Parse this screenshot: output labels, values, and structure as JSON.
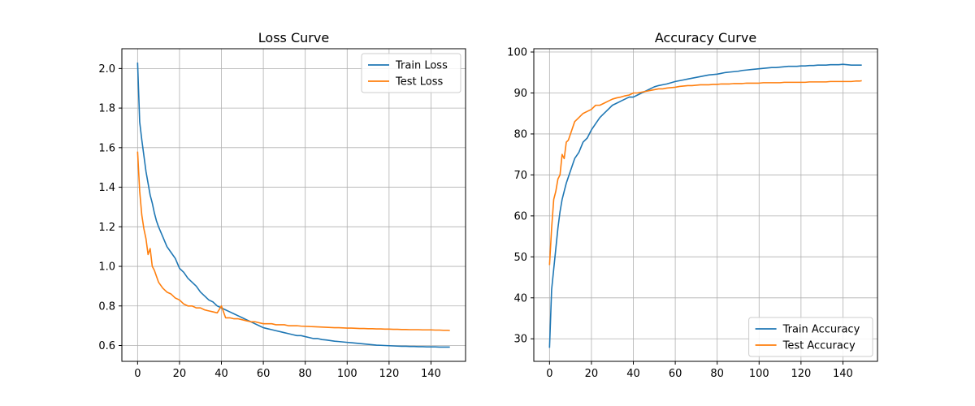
{
  "chart_data": [
    {
      "type": "line",
      "title": "Loss Curve",
      "xlabel": "",
      "ylabel": "",
      "xlim": [
        -7.5,
        156.5
      ],
      "ylim": [
        0.52,
        2.1
      ],
      "xticks": [
        0,
        20,
        40,
        60,
        80,
        100,
        120,
        140
      ],
      "xtick_labels": [
        "0",
        "20",
        "40",
        "60",
        "80",
        "100",
        "120",
        "140"
      ],
      "yticks": [
        0.6,
        0.8,
        1.0,
        1.2,
        1.4,
        1.6,
        1.8,
        2.0
      ],
      "ytick_labels": [
        "0.6",
        "0.8",
        "1.0",
        "1.2",
        "1.4",
        "1.6",
        "1.8",
        "2.0"
      ],
      "grid": true,
      "legend_position": "top-right",
      "series": [
        {
          "name": "Train Loss",
          "color": "#1f77b4",
          "x": [
            0,
            1,
            2,
            3,
            4,
            5,
            6,
            7,
            8,
            9,
            10,
            12,
            14,
            16,
            18,
            20,
            22,
            24,
            26,
            28,
            30,
            32,
            34,
            36,
            38,
            40,
            42,
            44,
            46,
            48,
            50,
            52,
            54,
            56,
            58,
            60,
            62,
            64,
            66,
            68,
            70,
            72,
            74,
            76,
            78,
            80,
            82,
            84,
            86,
            88,
            90,
            92,
            94,
            96,
            98,
            100,
            102,
            104,
            106,
            108,
            110,
            112,
            114,
            116,
            118,
            120,
            122,
            124,
            126,
            128,
            130,
            132,
            134,
            136,
            138,
            140,
            142,
            144,
            146,
            148,
            149
          ],
          "y": [
            2.03,
            1.73,
            1.64,
            1.56,
            1.48,
            1.42,
            1.36,
            1.32,
            1.27,
            1.23,
            1.2,
            1.15,
            1.1,
            1.07,
            1.04,
            0.99,
            0.97,
            0.94,
            0.92,
            0.9,
            0.87,
            0.85,
            0.83,
            0.82,
            0.8,
            0.79,
            0.78,
            0.77,
            0.76,
            0.75,
            0.74,
            0.73,
            0.72,
            0.71,
            0.7,
            0.69,
            0.685,
            0.68,
            0.675,
            0.67,
            0.665,
            0.66,
            0.655,
            0.65,
            0.65,
            0.645,
            0.64,
            0.635,
            0.635,
            0.63,
            0.628,
            0.625,
            0.622,
            0.62,
            0.618,
            0.616,
            0.614,
            0.612,
            0.61,
            0.608,
            0.606,
            0.604,
            0.602,
            0.601,
            0.6,
            0.599,
            0.598,
            0.597,
            0.596,
            0.596,
            0.595,
            0.595,
            0.594,
            0.594,
            0.593,
            0.593,
            0.593,
            0.592,
            0.592,
            0.592,
            0.592
          ]
        },
        {
          "name": "Test Loss",
          "color": "#ff7f0e",
          "x": [
            0,
            1,
            2,
            3,
            4,
            5,
            6,
            7,
            8,
            9,
            10,
            12,
            14,
            16,
            18,
            20,
            22,
            24,
            26,
            28,
            30,
            32,
            34,
            36,
            38,
            40,
            42,
            44,
            46,
            48,
            50,
            52,
            54,
            56,
            58,
            60,
            62,
            64,
            66,
            68,
            70,
            72,
            74,
            76,
            78,
            80,
            82,
            84,
            86,
            88,
            90,
            92,
            94,
            96,
            98,
            100,
            102,
            104,
            106,
            108,
            110,
            112,
            114,
            116,
            118,
            120,
            122,
            124,
            126,
            128,
            130,
            132,
            134,
            136,
            138,
            140,
            142,
            144,
            146,
            148,
            149
          ],
          "y": [
            1.58,
            1.38,
            1.26,
            1.19,
            1.14,
            1.06,
            1.09,
            1.0,
            0.98,
            0.95,
            0.92,
            0.89,
            0.87,
            0.86,
            0.84,
            0.83,
            0.81,
            0.8,
            0.8,
            0.79,
            0.79,
            0.78,
            0.775,
            0.77,
            0.765,
            0.8,
            0.74,
            0.74,
            0.735,
            0.735,
            0.73,
            0.725,
            0.72,
            0.72,
            0.715,
            0.71,
            0.71,
            0.71,
            0.705,
            0.705,
            0.705,
            0.7,
            0.7,
            0.7,
            0.698,
            0.697,
            0.696,
            0.695,
            0.694,
            0.693,
            0.692,
            0.691,
            0.69,
            0.69,
            0.689,
            0.688,
            0.688,
            0.687,
            0.686,
            0.686,
            0.685,
            0.685,
            0.684,
            0.684,
            0.683,
            0.683,
            0.682,
            0.682,
            0.681,
            0.681,
            0.68,
            0.68,
            0.68,
            0.679,
            0.679,
            0.679,
            0.678,
            0.678,
            0.677,
            0.677,
            0.676
          ]
        }
      ]
    },
    {
      "type": "line",
      "title": "Accuracy Curve",
      "xlabel": "",
      "ylabel": "",
      "xlim": [
        -7.5,
        156.5
      ],
      "ylim": [
        24.5,
        100.8
      ],
      "xticks": [
        0,
        20,
        40,
        60,
        80,
        100,
        120,
        140
      ],
      "xtick_labels": [
        "0",
        "20",
        "40",
        "60",
        "80",
        "100",
        "120",
        "140"
      ],
      "yticks": [
        30,
        40,
        50,
        60,
        70,
        80,
        90,
        100
      ],
      "ytick_labels": [
        "30",
        "40",
        "50",
        "60",
        "70",
        "80",
        "90",
        "100"
      ],
      "grid": true,
      "legend_position": "bottom-right",
      "series": [
        {
          "name": "Train Accuracy",
          "color": "#1f77b4",
          "x": [
            0,
            1,
            2,
            3,
            4,
            5,
            6,
            7,
            8,
            9,
            10,
            12,
            14,
            16,
            18,
            20,
            22,
            24,
            26,
            28,
            30,
            32,
            34,
            36,
            38,
            40,
            42,
            44,
            46,
            48,
            50,
            52,
            54,
            56,
            58,
            60,
            62,
            64,
            66,
            68,
            70,
            72,
            74,
            76,
            78,
            80,
            82,
            84,
            86,
            88,
            90,
            92,
            94,
            96,
            98,
            100,
            102,
            104,
            106,
            108,
            110,
            112,
            114,
            116,
            118,
            120,
            122,
            124,
            126,
            128,
            130,
            132,
            134,
            136,
            138,
            140,
            142,
            144,
            146,
            148,
            149
          ],
          "y": [
            27.8,
            42,
            47,
            52,
            57,
            61,
            64,
            66,
            68,
            69.5,
            71,
            74,
            75.5,
            78,
            79,
            81,
            82.5,
            84,
            85,
            86,
            87,
            87.5,
            88,
            88.5,
            89,
            89,
            89.5,
            90,
            90.5,
            91,
            91.5,
            91.8,
            92,
            92.2,
            92.5,
            92.8,
            93,
            93.2,
            93.4,
            93.6,
            93.8,
            94,
            94.2,
            94.4,
            94.5,
            94.6,
            94.8,
            95,
            95.1,
            95.2,
            95.3,
            95.5,
            95.6,
            95.7,
            95.8,
            95.9,
            96,
            96.1,
            96.2,
            96.2,
            96.3,
            96.4,
            96.5,
            96.5,
            96.5,
            96.6,
            96.6,
            96.7,
            96.7,
            96.8,
            96.8,
            96.8,
            96.9,
            96.9,
            96.9,
            97,
            96.9,
            96.8,
            96.8,
            96.8,
            96.8
          ]
        },
        {
          "name": "Test Accuracy",
          "color": "#ff7f0e",
          "x": [
            0,
            1,
            2,
            3,
            4,
            5,
            6,
            7,
            8,
            9,
            10,
            12,
            14,
            16,
            18,
            20,
            22,
            24,
            26,
            28,
            30,
            32,
            34,
            36,
            38,
            40,
            42,
            44,
            46,
            48,
            50,
            52,
            54,
            56,
            58,
            60,
            62,
            64,
            66,
            68,
            70,
            72,
            74,
            76,
            78,
            80,
            82,
            84,
            86,
            88,
            90,
            92,
            94,
            96,
            98,
            100,
            102,
            104,
            106,
            108,
            110,
            112,
            114,
            116,
            118,
            120,
            122,
            124,
            126,
            128,
            130,
            132,
            134,
            136,
            138,
            140,
            142,
            144,
            146,
            148,
            149
          ],
          "y": [
            48,
            57,
            64,
            66,
            69,
            70,
            75,
            74,
            78,
            78.5,
            80,
            83,
            84,
            85,
            85.5,
            86,
            87,
            87,
            87.5,
            88,
            88.5,
            88.8,
            89,
            89.3,
            89.5,
            90,
            90,
            90.2,
            90.4,
            90.6,
            90.8,
            91,
            91,
            91.2,
            91.3,
            91.4,
            91.6,
            91.7,
            91.8,
            91.8,
            91.9,
            92,
            92,
            92,
            92.1,
            92.1,
            92.2,
            92.2,
            92.2,
            92.3,
            92.3,
            92.3,
            92.4,
            92.4,
            92.4,
            92.4,
            92.5,
            92.5,
            92.5,
            92.5,
            92.5,
            92.6,
            92.6,
            92.6,
            92.6,
            92.6,
            92.6,
            92.7,
            92.7,
            92.7,
            92.7,
            92.7,
            92.8,
            92.8,
            92.8,
            92.8,
            92.8,
            92.8,
            92.9,
            92.9,
            93
          ]
        }
      ]
    }
  ]
}
